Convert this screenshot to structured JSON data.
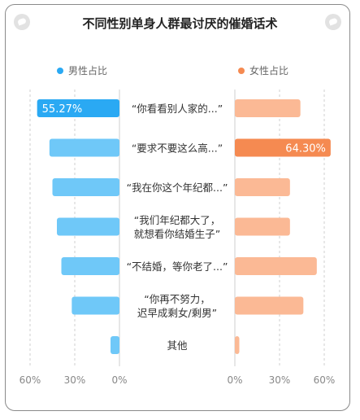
{
  "title": "不同性别单身人群最讨厌的催婚话术",
  "colors": {
    "male": "#6fc8f8",
    "male_highlight": "#2aa9f3",
    "female": "#fbb995",
    "female_highlight": "#f58a51",
    "divider": "#cfcfcf"
  },
  "chart_data": {
    "type": "bar",
    "layout": "butterfly",
    "categories": [
      "“你看看别人家的...”",
      "“要求不要这么高...”",
      "“我在你这个年纪都...”",
      "“我们年纪都大了，\n就想看你结婚生子”",
      "“不结婚，等你老了...”",
      "“你再不努力，\n迟早成剩女/剩男”",
      "其他"
    ],
    "series": [
      {
        "name": "男性占比",
        "side": "left",
        "values": [
          55.27,
          47,
          45,
          42,
          39,
          32,
          6
        ],
        "highlight_index": 0,
        "highlight_label": "55.27%"
      },
      {
        "name": "女性占比",
        "side": "right",
        "values": [
          44,
          64.3,
          37,
          37,
          55,
          46,
          3
        ],
        "highlight_index": 1,
        "highlight_label": "64.30%"
      }
    ],
    "axis_left": {
      "ticks": [
        "60%",
        "30%",
        "0%"
      ],
      "max": 60
    },
    "axis_right": {
      "ticks": [
        "0%",
        "30%",
        "60%"
      ],
      "max": 60
    },
    "grid": true
  }
}
